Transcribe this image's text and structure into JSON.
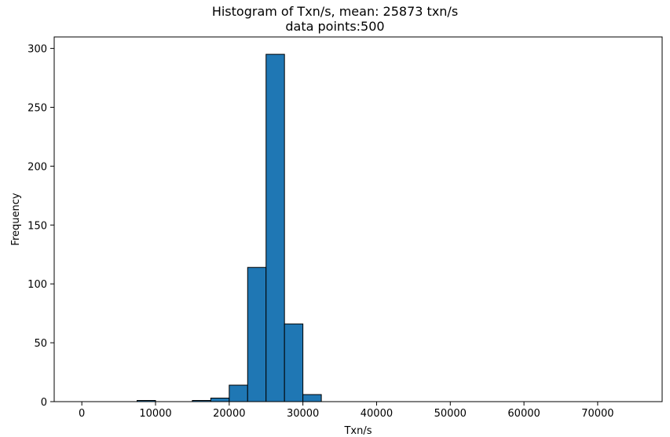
{
  "chart_data": {
    "type": "bar",
    "title_line1": "Histogram of Txn/s, mean: 25873 txn/s",
    "title_line2": "data points:500",
    "xlabel": "Txn/s",
    "ylabel": "Frequency",
    "xlim": [
      -3750,
      78750
    ],
    "ylim": [
      0,
      309.75
    ],
    "x_ticks": [
      0,
      10000,
      20000,
      30000,
      40000,
      50000,
      60000,
      70000
    ],
    "y_ticks": [
      0,
      50,
      100,
      150,
      200,
      250,
      300
    ],
    "bin_width": 2500,
    "bins": [
      {
        "start": 0,
        "count": 0
      },
      {
        "start": 2500,
        "count": 0
      },
      {
        "start": 5000,
        "count": 0
      },
      {
        "start": 7500,
        "count": 1
      },
      {
        "start": 10000,
        "count": 0
      },
      {
        "start": 12500,
        "count": 0
      },
      {
        "start": 15000,
        "count": 1
      },
      {
        "start": 17500,
        "count": 3
      },
      {
        "start": 20000,
        "count": 14
      },
      {
        "start": 22500,
        "count": 114
      },
      {
        "start": 25000,
        "count": 295
      },
      {
        "start": 27500,
        "count": 66
      },
      {
        "start": 30000,
        "count": 6
      },
      {
        "start": 32500,
        "count": 0
      },
      {
        "start": 35000,
        "count": 0
      },
      {
        "start": 37500,
        "count": 0
      },
      {
        "start": 40000,
        "count": 0
      },
      {
        "start": 42500,
        "count": 0
      },
      {
        "start": 45000,
        "count": 0
      },
      {
        "start": 47500,
        "count": 0
      },
      {
        "start": 50000,
        "count": 0
      },
      {
        "start": 52500,
        "count": 0
      },
      {
        "start": 55000,
        "count": 0
      },
      {
        "start": 57500,
        "count": 0
      },
      {
        "start": 60000,
        "count": 0
      },
      {
        "start": 62500,
        "count": 0
      },
      {
        "start": 65000,
        "count": 0
      },
      {
        "start": 67500,
        "count": 0
      },
      {
        "start": 70000,
        "count": 0
      },
      {
        "start": 72500,
        "count": 0
      }
    ],
    "bar_color": "#1f77b4",
    "edge_color": "#000000",
    "grid": false,
    "legend": "none"
  }
}
